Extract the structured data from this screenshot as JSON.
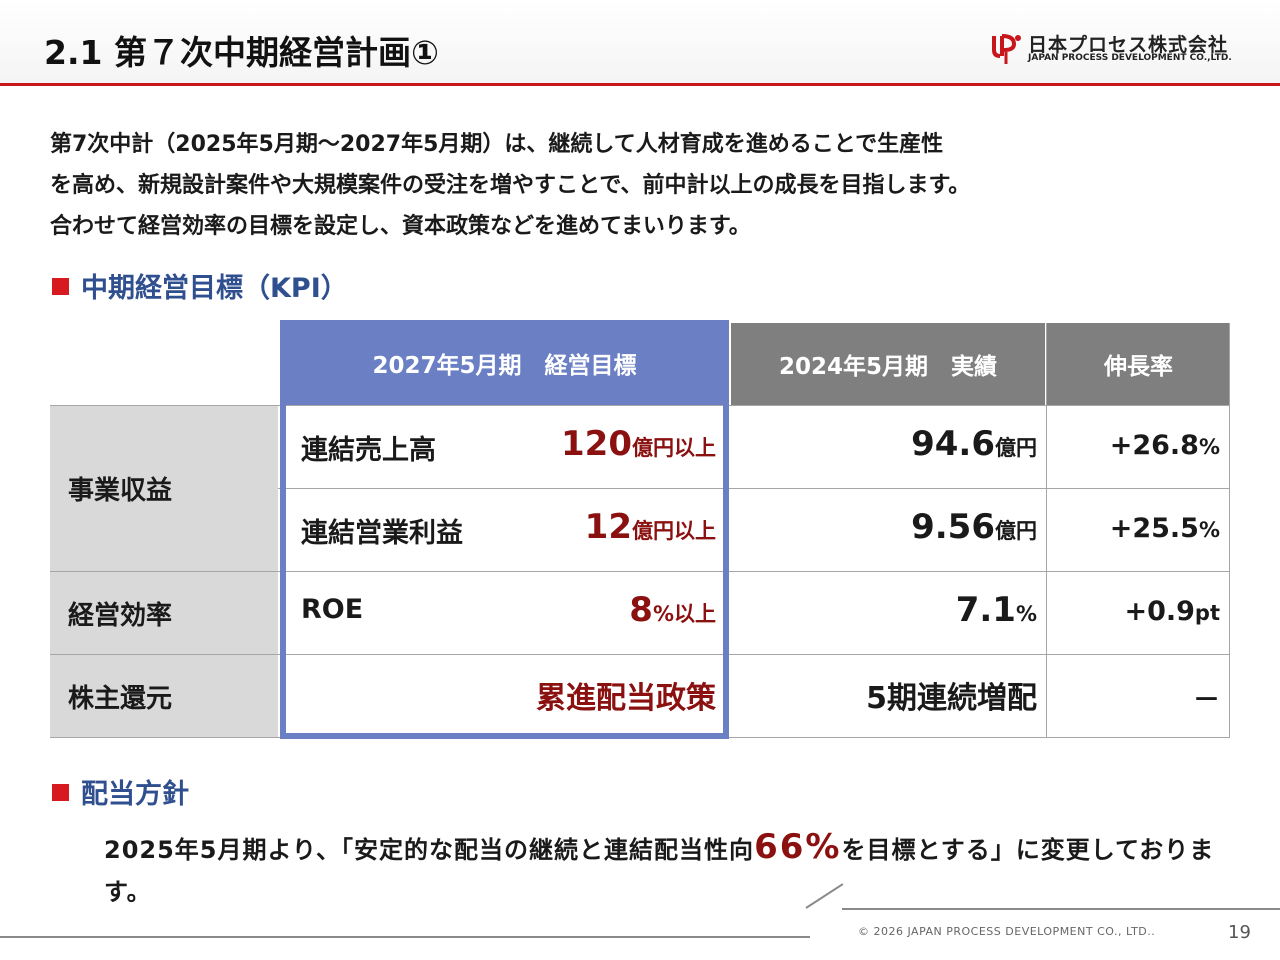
{
  "header": {
    "title": "2.1  第７次中期経営計画①",
    "logo_name": "日本プロセス株式会社",
    "logo_sub": "JAPAN PROCESS DEVELOPMENT CO.,LTD."
  },
  "intro": [
    "第7次中計（2025年5月期～2027年5月期）は、継続して人材育成を進めることで生産性",
    "を高め、新規設計案件や大規模案件の受注を増やすことで、前中計以上の成長を目指します。",
    "合わせて経営効率の目標を設定し、資本政策などを進めてまいります。"
  ],
  "kpi_section": {
    "heading": "中期経営目標（KPI）",
    "columns": {
      "target": "2027年5月期　経営目標",
      "actual": "2024年5月期　実績",
      "growth": "伸長率"
    },
    "groups": {
      "business": "事業収益",
      "efficiency": "経営効率",
      "return": "株主還元"
    },
    "rows": [
      {
        "item": "連結売上高",
        "target_num": "120",
        "target_unit": "億円以上",
        "actual_num": "94.6",
        "actual_unit": "億円",
        "growth_num": "+26.8",
        "growth_unit": "%"
      },
      {
        "item": "連結営業利益",
        "target_num": "12",
        "target_unit": "億円以上",
        "actual_num": "9.56",
        "actual_unit": "億円",
        "growth_num": "+25.5",
        "growth_unit": "%"
      },
      {
        "item": "ROE",
        "target_num": "8",
        "target_unit": "%以上",
        "actual_num": "7.1",
        "actual_unit": "%",
        "growth_num": "+0.9",
        "growth_unit": "pt"
      },
      {
        "target_text": "累進配当政策",
        "actual_text": "5期連続増配",
        "growth_text": "－"
      }
    ]
  },
  "dividend_section": {
    "heading": "配当方針",
    "text_before": "2025年5月期より、「安定的な配当の継続と連結配当性向",
    "highlight": "66%",
    "text_after": "を目標とする」に変更しております。"
  },
  "footer": {
    "copyright": "© 2026 JAPAN PROCESS DEVELOPMENT CO., LTD..",
    "page": "19"
  },
  "colors": {
    "accent_red": "#c8161d",
    "heading_blue": "#2f4f8f",
    "target_red": "#8b1010",
    "header_blue": "#6a7fc4",
    "header_gray": "#7f7f7f",
    "label_gray": "#d9d9d9"
  }
}
